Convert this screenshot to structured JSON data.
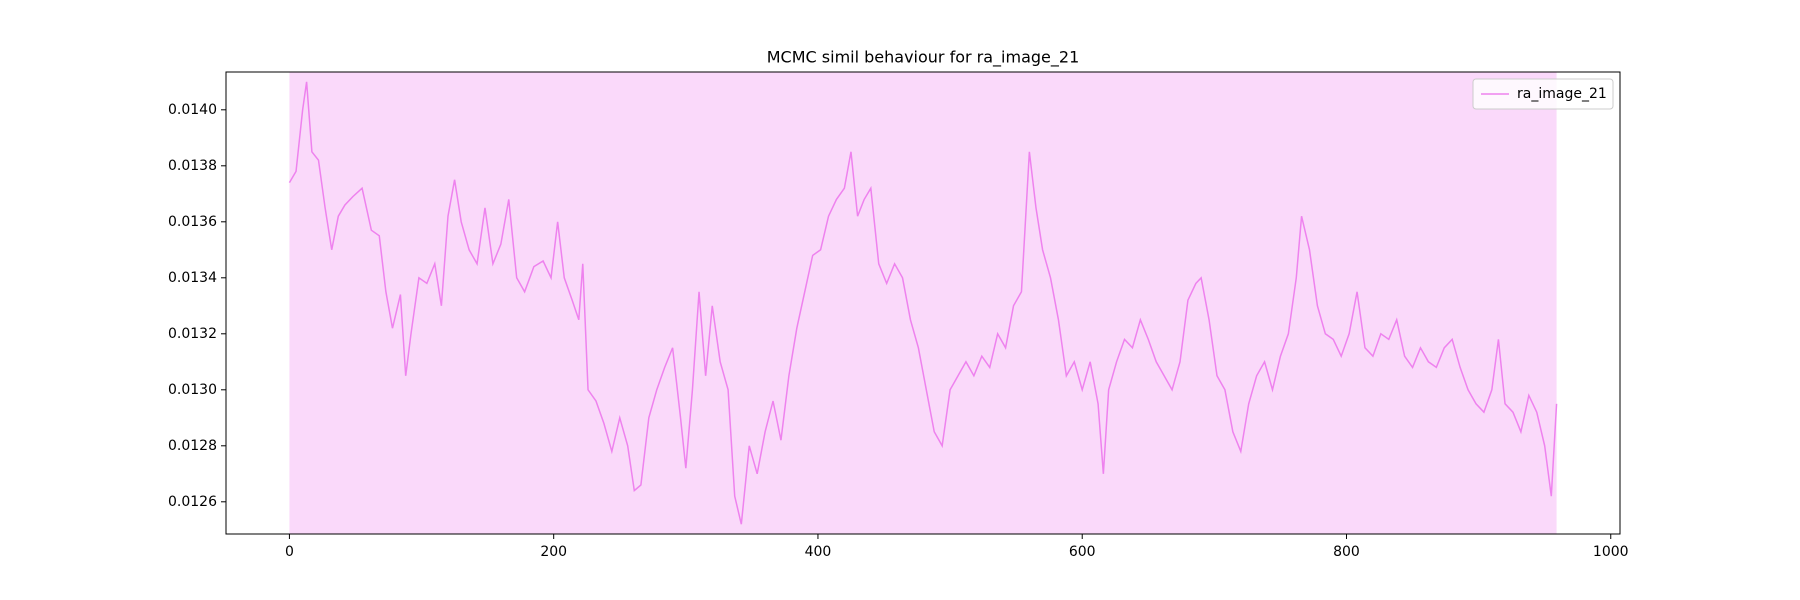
{
  "chart_data": {
    "type": "line",
    "title": "MCMC simil behaviour for ra_image_21",
    "x": [
      0,
      5,
      10,
      13,
      17,
      22,
      27,
      32,
      37,
      42,
      48,
      55,
      62,
      68,
      73,
      78,
      84,
      88,
      92,
      98,
      104,
      110,
      115,
      120,
      125,
      130,
      136,
      142,
      148,
      154,
      160,
      166,
      172,
      178,
      185,
      192,
      198,
      203,
      208,
      214,
      219,
      222,
      226,
      232,
      238,
      244,
      250,
      256,
      261,
      266,
      272,
      278,
      284,
      290,
      296,
      300,
      305,
      310,
      315,
      320,
      326,
      332,
      337,
      342,
      348,
      354,
      360,
      366,
      372,
      378,
      384,
      390,
      396,
      402,
      408,
      414,
      420,
      425,
      430,
      435,
      440,
      446,
      452,
      458,
      464,
      470,
      476,
      482,
      488,
      494,
      500,
      506,
      512,
      518,
      524,
      530,
      536,
      542,
      548,
      554,
      560,
      565,
      570,
      576,
      582,
      588,
      594,
      600,
      606,
      612,
      616,
      620,
      626,
      632,
      638,
      644,
      650,
      656,
      662,
      668,
      674,
      680,
      686,
      690,
      696,
      702,
      708,
      714,
      720,
      726,
      732,
      738,
      744,
      750,
      756,
      762,
      766,
      772,
      778,
      784,
      790,
      796,
      802,
      808,
      814,
      820,
      826,
      832,
      838,
      844,
      850,
      856,
      862,
      868,
      874,
      880,
      886,
      892,
      898,
      904,
      910,
      915,
      920,
      926,
      932,
      938,
      944,
      950,
      955,
      959
    ],
    "series": [
      {
        "name": "ra_image_21",
        "color": "#ee82ee",
        "values": [
          0.01374,
          0.01378,
          0.014,
          0.0141,
          0.01385,
          0.01382,
          0.01365,
          0.0135,
          0.01362,
          0.01366,
          0.01369,
          0.01372,
          0.01357,
          0.01355,
          0.01335,
          0.01322,
          0.01334,
          0.01305,
          0.0132,
          0.0134,
          0.01338,
          0.01345,
          0.0133,
          0.01362,
          0.01375,
          0.0136,
          0.0135,
          0.01345,
          0.01365,
          0.01345,
          0.01352,
          0.01368,
          0.0134,
          0.01335,
          0.01344,
          0.01346,
          0.0134,
          0.0136,
          0.0134,
          0.01332,
          0.01325,
          0.01345,
          0.013,
          0.01296,
          0.01288,
          0.01278,
          0.0129,
          0.0128,
          0.01264,
          0.01266,
          0.0129,
          0.013,
          0.01308,
          0.01315,
          0.0129,
          0.01272,
          0.013,
          0.01335,
          0.01305,
          0.0133,
          0.0131,
          0.013,
          0.01262,
          0.01252,
          0.0128,
          0.0127,
          0.01285,
          0.01296,
          0.01282,
          0.01305,
          0.01322,
          0.01335,
          0.01348,
          0.0135,
          0.01362,
          0.01368,
          0.01372,
          0.01385,
          0.01362,
          0.01368,
          0.01372,
          0.01345,
          0.01338,
          0.01345,
          0.0134,
          0.01325,
          0.01315,
          0.013,
          0.01285,
          0.0128,
          0.013,
          0.01305,
          0.0131,
          0.01305,
          0.01312,
          0.01308,
          0.0132,
          0.01315,
          0.0133,
          0.01335,
          0.01385,
          0.01365,
          0.0135,
          0.0134,
          0.01325,
          0.01305,
          0.0131,
          0.013,
          0.0131,
          0.01295,
          0.0127,
          0.013,
          0.0131,
          0.01318,
          0.01315,
          0.01325,
          0.01318,
          0.0131,
          0.01305,
          0.013,
          0.0131,
          0.01332,
          0.01338,
          0.0134,
          0.01325,
          0.01305,
          0.013,
          0.01285,
          0.01278,
          0.01295,
          0.01305,
          0.0131,
          0.013,
          0.01312,
          0.0132,
          0.0134,
          0.01362,
          0.0135,
          0.0133,
          0.0132,
          0.01318,
          0.01312,
          0.0132,
          0.01335,
          0.01315,
          0.01312,
          0.0132,
          0.01318,
          0.01325,
          0.01312,
          0.01308,
          0.01315,
          0.0131,
          0.01308,
          0.01315,
          0.01318,
          0.01308,
          0.013,
          0.01295,
          0.01292,
          0.013,
          0.01318,
          0.01295,
          0.01292,
          0.01285,
          0.01298,
          0.01292,
          0.0128,
          0.01262,
          0.01295
        ]
      }
    ],
    "span": {
      "x": [
        0,
        959
      ],
      "color": "#ee82ee",
      "alpha": 0.3
    },
    "xlim": [
      -48,
      1007
    ],
    "xticks": [
      0,
      200,
      400,
      600,
      800,
      1000
    ],
    "ylim": [
      0.012485,
      0.014135
    ],
    "yticks": [
      0.0126,
      0.0128,
      {
        "value": 0.013,
        "label": "0.0130"
      },
      0.0132,
      0.0134,
      0.0136,
      0.0138,
      {
        "value": 0.014,
        "label": "0.0140"
      }
    ],
    "legend": "upper right"
  }
}
